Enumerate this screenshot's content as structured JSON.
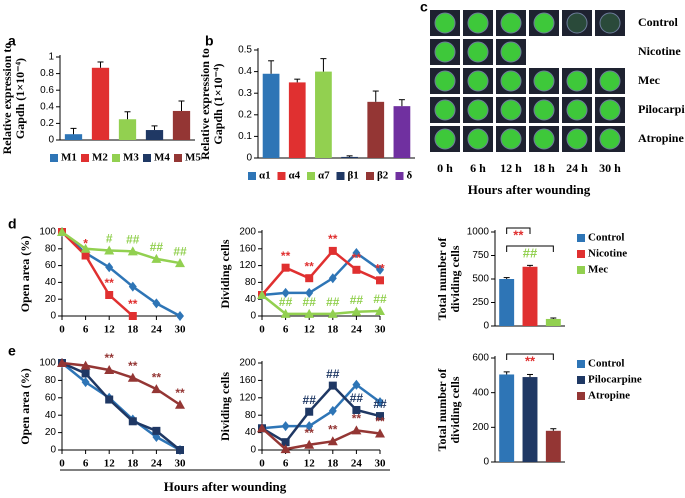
{
  "chart_data": [
    {
      "type": "bar",
      "letter": "a",
      "categories": [
        "M1",
        "M2",
        "M3",
        "M4",
        "M5"
      ],
      "values": [
        0.07,
        0.87,
        0.25,
        0.12,
        0.35
      ],
      "errors": [
        0.07,
        0.07,
        0.09,
        0.05,
        0.12
      ],
      "colors": [
        "#2e75b6",
        "#e03030",
        "#92d050",
        "#1f3864",
        "#943634"
      ],
      "ylim": [
        0,
        1
      ],
      "yticks": [
        0,
        0.2,
        0.4,
        0.6,
        0.8,
        1
      ],
      "ylabel": [
        "Relative expression to",
        "Gapdh (1×10⁻⁴)"
      ],
      "legend": "bottom"
    },
    {
      "type": "bar",
      "letter": "b",
      "categories": [
        "α1",
        "α4",
        "α7",
        "β1",
        "β2",
        "δ"
      ],
      "values": [
        0.39,
        0.35,
        0.4,
        0.005,
        0.26,
        0.24
      ],
      "errors": [
        0.06,
        0.015,
        0.06,
        0.005,
        0.05,
        0.03
      ],
      "colors": [
        "#2e75b6",
        "#e03030",
        "#92d050",
        "#1f3864",
        "#943634",
        "#7030a0"
      ],
      "ylim": [
        0,
        0.5
      ],
      "yticks": [
        0,
        0.1,
        0.2,
        0.3,
        0.4,
        0.5
      ],
      "ylabel": [
        "Relative expression to",
        "Gapdh (1×10⁻⁴)"
      ],
      "legend": "bottom"
    },
    {
      "type": "image_grid",
      "letter": "c",
      "rows": [
        "Control",
        "Nicotine",
        "Mec",
        "Pilocarpine",
        "Atropine"
      ],
      "columns": [
        "0 h",
        "6 h",
        "12 h",
        "18 h",
        "24 h",
        "30 h"
      ],
      "counts": [
        6,
        3,
        6,
        6,
        6
      ],
      "xlabel": "Hours after wounding"
    },
    {
      "type": "line",
      "letter": "d",
      "x": [
        0,
        6,
        12,
        18,
        24,
        30
      ],
      "xlim": [
        0,
        30
      ],
      "xticks": [
        0,
        6,
        12,
        18,
        24,
        30
      ],
      "ylim": [
        0,
        100
      ],
      "yticks": [
        0,
        20,
        40,
        60,
        80,
        100
      ],
      "ylabel": [
        "Open  area (%)"
      ],
      "series": [
        {
          "color": "#2e75b6",
          "marker": "diamond",
          "values": [
            100,
            75,
            58,
            35,
            15,
            0
          ],
          "labels": [
            null,
            null,
            null,
            null,
            null,
            null
          ]
        },
        {
          "color": "#e03030",
          "marker": "square",
          "values": [
            100,
            72,
            25,
            0,
            null,
            null
          ],
          "labels": [
            null,
            "*",
            "**",
            "**",
            null,
            null
          ]
        },
        {
          "color": "#92d050",
          "marker": "triangle",
          "values": [
            100,
            80,
            78,
            77,
            68,
            63
          ],
          "labels": [
            null,
            null,
            "#",
            "##",
            "##",
            "##"
          ]
        }
      ]
    },
    {
      "type": "line",
      "x": [
        0,
        6,
        12,
        18,
        24,
        30
      ],
      "xlim": [
        0,
        30
      ],
      "xticks": [
        0,
        6,
        12,
        18,
        24,
        30
      ],
      "ylim": [
        0,
        200
      ],
      "yticks": [
        0,
        40,
        80,
        120,
        160,
        200
      ],
      "ylabel": [
        "Dividing  cells"
      ],
      "series": [
        {
          "color": "#2e75b6",
          "marker": "diamond",
          "values": [
            50,
            55,
            55,
            90,
            150,
            110
          ],
          "labels": [
            null,
            null,
            null,
            null,
            null,
            null
          ]
        },
        {
          "color": "#e03030",
          "marker": "square",
          "values": [
            50,
            115,
            90,
            155,
            110,
            85
          ],
          "labels": [
            null,
            "**",
            "**",
            "**",
            "**",
            "**"
          ]
        },
        {
          "color": "#92d050",
          "marker": "triangle",
          "values": [
            50,
            5,
            5,
            5,
            10,
            12
          ],
          "labels": [
            null,
            "##",
            "##",
            "##",
            "##",
            "##"
          ]
        }
      ]
    },
    {
      "type": "bar",
      "categories": [
        "Control",
        "Nicotine",
        "Mec"
      ],
      "values": [
        500,
        630,
        75
      ],
      "errors": [
        15,
        15,
        10
      ],
      "colors": [
        "#2e75b6",
        "#e03030",
        "#92d050"
      ],
      "ylim": [
        0,
        1000
      ],
      "yticks": [
        0,
        250,
        500,
        750,
        1000
      ],
      "ylabel": [
        "Total number of",
        "dividing cells"
      ],
      "legend": "right",
      "brackets": [
        {
          "from": 0,
          "to": 1,
          "label": "**",
          "color": "#e03030"
        },
        {
          "from": 0,
          "to": 2,
          "label": "##",
          "color": "#92d050"
        }
      ]
    },
    {
      "type": "line",
      "letter": "e",
      "x": [
        0,
        6,
        12,
        18,
        24,
        30
      ],
      "xlim": [
        0,
        30
      ],
      "xticks": [
        0,
        6,
        12,
        18,
        24,
        30
      ],
      "ylim": [
        0,
        100
      ],
      "yticks": [
        0,
        20,
        40,
        60,
        80,
        100
      ],
      "ylabel": [
        "Open  area (%)"
      ],
      "series": [
        {
          "color": "#2e75b6",
          "marker": "diamond",
          "values": [
            100,
            78,
            60,
            35,
            15,
            0
          ],
          "labels": [
            null,
            null,
            null,
            null,
            null,
            null
          ]
        },
        {
          "color": "#1f3864",
          "marker": "square",
          "values": [
            100,
            88,
            58,
            33,
            22,
            0
          ],
          "labels": [
            null,
            null,
            null,
            null,
            null,
            null
          ]
        },
        {
          "color": "#943634",
          "marker": "triangle",
          "values": [
            100,
            97,
            92,
            83,
            70,
            52
          ],
          "labels": [
            null,
            null,
            "**",
            "**",
            "**",
            "**"
          ]
        }
      ]
    },
    {
      "type": "line",
      "x": [
        0,
        6,
        12,
        18,
        24,
        30
      ],
      "xlim": [
        0,
        30
      ],
      "xticks": [
        0,
        6,
        12,
        18,
        24,
        30
      ],
      "ylim": [
        0,
        200
      ],
      "yticks": [
        0,
        40,
        80,
        120,
        160,
        200
      ],
      "ylabel": [
        "Dividing  cells"
      ],
      "series": [
        {
          "color": "#2e75b6",
          "marker": "diamond",
          "values": [
            50,
            55,
            55,
            90,
            150,
            110
          ],
          "labels": [
            null,
            null,
            null,
            null,
            null,
            null
          ]
        },
        {
          "color": "#1f3864",
          "marker": "square",
          "values": [
            50,
            18,
            88,
            148,
            92,
            78
          ],
          "labels": [
            null,
            null,
            "##",
            "##",
            "##",
            "##"
          ]
        },
        {
          "color": "#943634",
          "marker": "triangle",
          "values": [
            50,
            2,
            12,
            20,
            45,
            38
          ],
          "labels": [
            null,
            null,
            "**",
            "**",
            "**",
            "**"
          ]
        }
      ]
    },
    {
      "type": "bar",
      "categories": [
        "Control",
        "Pilocarpine",
        "Atropine"
      ],
      "values": [
        505,
        490,
        180
      ],
      "errors": [
        15,
        15,
        12
      ],
      "colors": [
        "#2e75b6",
        "#1f3864",
        "#943634"
      ],
      "ylim": [
        0,
        600
      ],
      "yticks": [
        0,
        200,
        400,
        600
      ],
      "ylabel": [
        "Total number of",
        "dividing cells"
      ],
      "legend": "right",
      "brackets": [
        {
          "from": 0,
          "to": 2,
          "label": "**",
          "color": "#e03030"
        }
      ]
    }
  ],
  "footer_label": "Hours  after  wounding"
}
